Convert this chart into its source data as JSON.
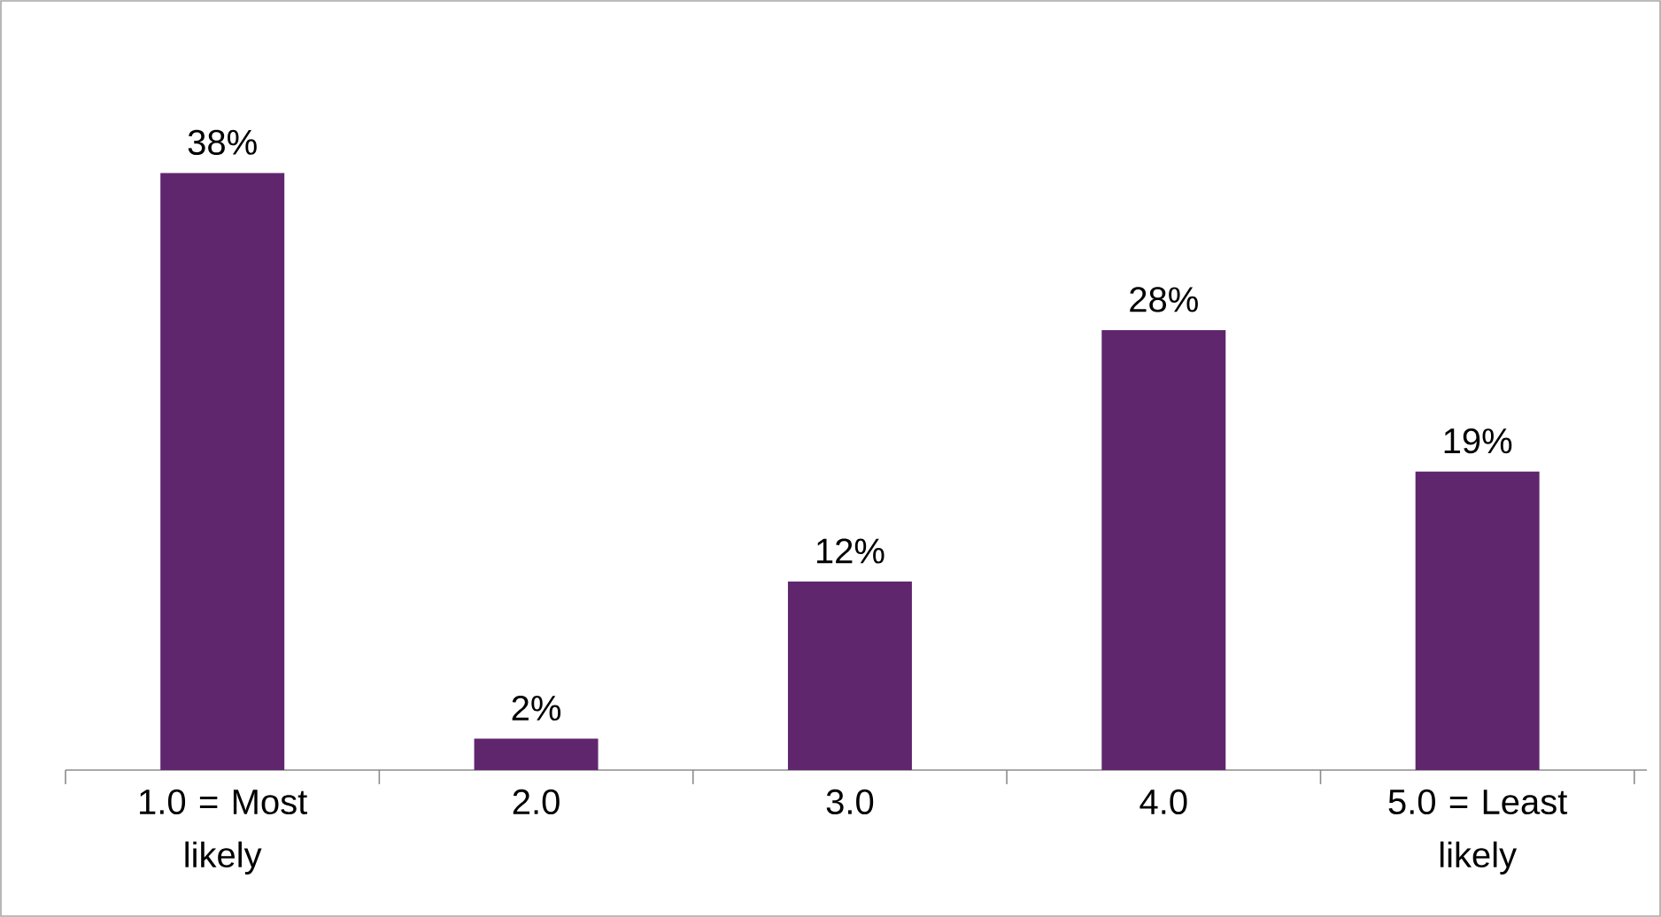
{
  "chart_data": {
    "type": "bar",
    "categories": [
      "1.0 = Most likely",
      "2.0",
      "3.0",
      "4.0",
      "5.0 = Least likely"
    ],
    "values": [
      38,
      2,
      12,
      28,
      19
    ],
    "value_labels": [
      "38%",
      "2%",
      "12%",
      "28%",
      "19%"
    ],
    "color": "#5f266d"
  }
}
